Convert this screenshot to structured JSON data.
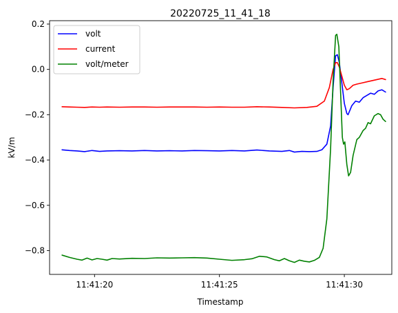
{
  "chart_data": {
    "type": "line",
    "title": "20220725_11_41_18",
    "xlabel": "Timestamp",
    "ylabel": "kV/m",
    "xlim": [
      18.2,
      31.9
    ],
    "ylim": [
      -0.905,
      0.215
    ],
    "x_ticks": [
      {
        "value": 20,
        "label": "11:41:20"
      },
      {
        "value": 25,
        "label": "11:41:25"
      },
      {
        "value": 30,
        "label": "11:41:30"
      }
    ],
    "y_ticks": [
      {
        "value": 0.2,
        "label": "0.2"
      },
      {
        "value": 0.0,
        "label": "0.0"
      },
      {
        "value": -0.2,
        "label": "−0.2"
      },
      {
        "value": -0.4,
        "label": "−0.4"
      },
      {
        "value": -0.6,
        "label": "−0.6"
      },
      {
        "value": -0.8,
        "label": "−0.8"
      }
    ],
    "grid": false,
    "legend": "top-left",
    "series": [
      {
        "name": "volt",
        "color": "#0000ff",
        "points": [
          [
            18.7,
            -0.355
          ],
          [
            19.0,
            -0.358
          ],
          [
            19.3,
            -0.36
          ],
          [
            19.6,
            -0.363
          ],
          [
            19.9,
            -0.358
          ],
          [
            20.2,
            -0.362
          ],
          [
            20.5,
            -0.36
          ],
          [
            21.0,
            -0.359
          ],
          [
            21.5,
            -0.36
          ],
          [
            22.0,
            -0.358
          ],
          [
            22.5,
            -0.36
          ],
          [
            23.0,
            -0.359
          ],
          [
            23.5,
            -0.36
          ],
          [
            24.0,
            -0.358
          ],
          [
            24.5,
            -0.359
          ],
          [
            25.0,
            -0.36
          ],
          [
            25.5,
            -0.358
          ],
          [
            26.0,
            -0.36
          ],
          [
            26.5,
            -0.356
          ],
          [
            27.0,
            -0.36
          ],
          [
            27.5,
            -0.362
          ],
          [
            27.8,
            -0.358
          ],
          [
            28.0,
            -0.365
          ],
          [
            28.3,
            -0.362
          ],
          [
            28.6,
            -0.363
          ],
          [
            28.9,
            -0.362
          ],
          [
            29.1,
            -0.355
          ],
          [
            29.3,
            -0.33
          ],
          [
            29.45,
            -0.25
          ],
          [
            29.55,
            -0.08
          ],
          [
            29.65,
            0.06
          ],
          [
            29.72,
            0.065
          ],
          [
            29.8,
            0.03
          ],
          [
            29.9,
            -0.06
          ],
          [
            30.0,
            -0.15
          ],
          [
            30.1,
            -0.195
          ],
          [
            30.15,
            -0.2
          ],
          [
            30.3,
            -0.16
          ],
          [
            30.45,
            -0.14
          ],
          [
            30.6,
            -0.145
          ],
          [
            30.75,
            -0.125
          ],
          [
            30.9,
            -0.115
          ],
          [
            31.05,
            -0.105
          ],
          [
            31.2,
            -0.11
          ],
          [
            31.35,
            -0.095
          ],
          [
            31.5,
            -0.09
          ],
          [
            31.65,
            -0.1
          ]
        ]
      },
      {
        "name": "current",
        "color": "#ff0000",
        "points": [
          [
            18.7,
            -0.165
          ],
          [
            19.0,
            -0.166
          ],
          [
            19.3,
            -0.167
          ],
          [
            19.6,
            -0.168
          ],
          [
            19.9,
            -0.166
          ],
          [
            20.2,
            -0.167
          ],
          [
            20.5,
            -0.166
          ],
          [
            21.0,
            -0.167
          ],
          [
            21.5,
            -0.166
          ],
          [
            22.0,
            -0.166
          ],
          [
            22.5,
            -0.167
          ],
          [
            23.0,
            -0.166
          ],
          [
            23.5,
            -0.166
          ],
          [
            24.0,
            -0.166
          ],
          [
            24.5,
            -0.167
          ],
          [
            25.0,
            -0.166
          ],
          [
            25.5,
            -0.167
          ],
          [
            26.0,
            -0.167
          ],
          [
            26.5,
            -0.165
          ],
          [
            27.0,
            -0.166
          ],
          [
            27.5,
            -0.168
          ],
          [
            28.0,
            -0.17
          ],
          [
            28.5,
            -0.168
          ],
          [
            28.9,
            -0.163
          ],
          [
            29.2,
            -0.14
          ],
          [
            29.4,
            -0.08
          ],
          [
            29.55,
            0.0
          ],
          [
            29.65,
            0.03
          ],
          [
            29.72,
            0.03
          ],
          [
            29.8,
            0.01
          ],
          [
            29.9,
            -0.03
          ],
          [
            30.0,
            -0.07
          ],
          [
            30.1,
            -0.09
          ],
          [
            30.2,
            -0.085
          ],
          [
            30.35,
            -0.07
          ],
          [
            30.5,
            -0.065
          ],
          [
            30.7,
            -0.06
          ],
          [
            30.9,
            -0.055
          ],
          [
            31.1,
            -0.05
          ],
          [
            31.3,
            -0.045
          ],
          [
            31.5,
            -0.04
          ],
          [
            31.65,
            -0.045
          ]
        ]
      },
      {
        "name": "volt/meter",
        "color": "#008000",
        "points": [
          [
            18.7,
            -0.82
          ],
          [
            19.0,
            -0.83
          ],
          [
            19.3,
            -0.838
          ],
          [
            19.5,
            -0.842
          ],
          [
            19.7,
            -0.833
          ],
          [
            19.9,
            -0.841
          ],
          [
            20.1,
            -0.835
          ],
          [
            20.3,
            -0.838
          ],
          [
            20.5,
            -0.842
          ],
          [
            20.7,
            -0.835
          ],
          [
            21.0,
            -0.837
          ],
          [
            21.5,
            -0.834
          ],
          [
            22.0,
            -0.835
          ],
          [
            22.5,
            -0.832
          ],
          [
            23.0,
            -0.833
          ],
          [
            23.5,
            -0.832
          ],
          [
            24.0,
            -0.831
          ],
          [
            24.5,
            -0.833
          ],
          [
            25.0,
            -0.838
          ],
          [
            25.5,
            -0.843
          ],
          [
            26.0,
            -0.84
          ],
          [
            26.3,
            -0.836
          ],
          [
            26.6,
            -0.825
          ],
          [
            26.9,
            -0.828
          ],
          [
            27.2,
            -0.84
          ],
          [
            27.4,
            -0.845
          ],
          [
            27.6,
            -0.835
          ],
          [
            27.8,
            -0.845
          ],
          [
            28.0,
            -0.852
          ],
          [
            28.2,
            -0.842
          ],
          [
            28.4,
            -0.847
          ],
          [
            28.6,
            -0.85
          ],
          [
            28.8,
            -0.843
          ],
          [
            29.0,
            -0.83
          ],
          [
            29.15,
            -0.79
          ],
          [
            29.3,
            -0.66
          ],
          [
            29.45,
            -0.35
          ],
          [
            29.55,
            -0.05
          ],
          [
            29.65,
            0.15
          ],
          [
            29.7,
            0.155
          ],
          [
            29.78,
            0.1
          ],
          [
            29.85,
            -0.1
          ],
          [
            29.92,
            -0.3
          ],
          [
            29.97,
            -0.33
          ],
          [
            30.02,
            -0.32
          ],
          [
            30.1,
            -0.42
          ],
          [
            30.17,
            -0.47
          ],
          [
            30.25,
            -0.455
          ],
          [
            30.35,
            -0.38
          ],
          [
            30.5,
            -0.31
          ],
          [
            30.6,
            -0.3
          ],
          [
            30.75,
            -0.27
          ],
          [
            30.85,
            -0.26
          ],
          [
            30.95,
            -0.235
          ],
          [
            31.05,
            -0.24
          ],
          [
            31.2,
            -0.205
          ],
          [
            31.35,
            -0.195
          ],
          [
            31.45,
            -0.2
          ],
          [
            31.55,
            -0.22
          ],
          [
            31.65,
            -0.23
          ]
        ]
      }
    ]
  }
}
